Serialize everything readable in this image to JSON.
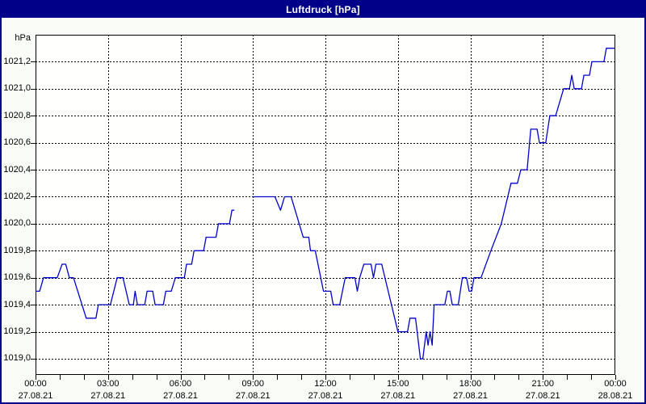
{
  "window": {
    "title": "Luftdruck [hPa]"
  },
  "colors": {
    "titlebar_bg": "#000088",
    "window_border": "#000088",
    "page_bg": "#fafcf8",
    "plot_bg": "#fffffe",
    "grid": "#000000",
    "text": "#000000",
    "line": "#0000cc"
  },
  "chart_data": {
    "type": "line",
    "title": "Luftdruck [hPa]",
    "ylabel": "hPa",
    "xlabel": "",
    "grid": "dashed",
    "legend": "none",
    "ylim": [
      1018.88,
      1021.4
    ],
    "xlim_hours": [
      0,
      24
    ],
    "minor_x_tick_hours": 1,
    "y_ticks": [
      {
        "value": 1021.2,
        "label": "1021,2"
      },
      {
        "value": 1021.0,
        "label": "1021,0"
      },
      {
        "value": 1020.8,
        "label": "1020,8"
      },
      {
        "value": 1020.6,
        "label": "1020,6"
      },
      {
        "value": 1020.4,
        "label": "1020,4"
      },
      {
        "value": 1020.2,
        "label": "1020,2"
      },
      {
        "value": 1020.0,
        "label": "1020,0"
      },
      {
        "value": 1019.8,
        "label": "1019,8"
      },
      {
        "value": 1019.6,
        "label": "1019,6"
      },
      {
        "value": 1019.4,
        "label": "1019,4"
      },
      {
        "value": 1019.2,
        "label": "1019,2"
      },
      {
        "value": 1019.0,
        "label": "1019,0"
      }
    ],
    "x_ticks": [
      {
        "hour": 0,
        "time": "00:00",
        "date": "27.08.21"
      },
      {
        "hour": 3,
        "time": "03:00",
        "date": "27.08.21"
      },
      {
        "hour": 6,
        "time": "06:00",
        "date": "27.08.21"
      },
      {
        "hour": 9,
        "time": "09:00",
        "date": "27.08.21"
      },
      {
        "hour": 12,
        "time": "12:00",
        "date": "27.08.21"
      },
      {
        "hour": 15,
        "time": "15:00",
        "date": "27.08.21"
      },
      {
        "hour": 18,
        "time": "18:00",
        "date": "27.08.21"
      },
      {
        "hour": 21,
        "time": "21:00",
        "date": "27.08.21"
      },
      {
        "hour": 24,
        "time": "00:00",
        "date": "28.08.21"
      }
    ],
    "series": [
      {
        "name": "Luftdruck",
        "color": "#0000cc",
        "segments": [
          [
            [
              0,
              1019.5
            ],
            [
              0.17,
              1019.5
            ],
            [
              0.33,
              1019.6
            ],
            [
              0.9,
              1019.6
            ],
            [
              1.1,
              1019.7
            ],
            [
              1.25,
              1019.7
            ],
            [
              1.4,
              1019.6
            ],
            [
              1.57,
              1019.6
            ],
            [
              2.1,
              1019.3
            ],
            [
              2.5,
              1019.3
            ],
            [
              2.6,
              1019.4
            ],
            [
              3.1,
              1019.4
            ],
            [
              3.38,
              1019.6
            ],
            [
              3.62,
              1019.6
            ],
            [
              3.88,
              1019.4
            ],
            [
              4.05,
              1019.4
            ],
            [
              4.12,
              1019.5
            ],
            [
              4.22,
              1019.4
            ],
            [
              4.52,
              1019.4
            ],
            [
              4.62,
              1019.5
            ],
            [
              4.85,
              1019.5
            ],
            [
              4.95,
              1019.4
            ],
            [
              5.29,
              1019.4
            ],
            [
              5.39,
              1019.5
            ],
            [
              5.62,
              1019.5
            ],
            [
              5.79,
              1019.6
            ],
            [
              6.16,
              1019.6
            ],
            [
              6.25,
              1019.7
            ],
            [
              6.46,
              1019.7
            ],
            [
              6.56,
              1019.8
            ],
            [
              6.96,
              1019.8
            ],
            [
              7.06,
              1019.9
            ],
            [
              7.47,
              1019.9
            ],
            [
              7.57,
              1020.0
            ],
            [
              8.03,
              1020.0
            ],
            [
              8.13,
              1020.1
            ],
            [
              8.23,
              1020.1
            ]
          ],
          [
            [
              9,
              1020.2
            ],
            [
              9.91,
              1020.2
            ],
            [
              10.14,
              1020.1
            ],
            [
              10.31,
              1020.2
            ],
            [
              10.58,
              1020.2
            ],
            [
              11.08,
              1019.9
            ],
            [
              11.31,
              1019.9
            ],
            [
              11.38,
              1019.8
            ],
            [
              11.58,
              1019.8
            ],
            [
              11.92,
              1019.5
            ],
            [
              12.22,
              1019.5
            ],
            [
              12.32,
              1019.4
            ],
            [
              12.59,
              1019.4
            ],
            [
              12.82,
              1019.6
            ],
            [
              13.22,
              1019.6
            ],
            [
              13.32,
              1019.5
            ],
            [
              13.42,
              1019.6
            ],
            [
              13.59,
              1019.7
            ],
            [
              13.89,
              1019.7
            ],
            [
              13.99,
              1019.6
            ],
            [
              14.09,
              1019.7
            ],
            [
              14.33,
              1019.7
            ],
            [
              15,
              1019.2
            ],
            [
              15.4,
              1019.2
            ],
            [
              15.5,
              1019.3
            ],
            [
              15.73,
              1019.3
            ],
            [
              15.93,
              1019.0
            ],
            [
              16.03,
              1019.0
            ],
            [
              16.17,
              1019.2
            ],
            [
              16.25,
              1019.1
            ],
            [
              16.33,
              1019.2
            ],
            [
              16.42,
              1019.1
            ],
            [
              16.5,
              1019.4
            ],
            [
              16.94,
              1019.4
            ],
            [
              17.05,
              1019.5
            ],
            [
              17.15,
              1019.5
            ],
            [
              17.25,
              1019.4
            ],
            [
              17.5,
              1019.4
            ],
            [
              17.67,
              1019.6
            ],
            [
              17.84,
              1019.6
            ],
            [
              17.95,
              1019.5
            ],
            [
              18.05,
              1019.5
            ],
            [
              18.15,
              1019.6
            ],
            [
              18.44,
              1019.6
            ],
            [
              18.85,
              1019.8
            ],
            [
              19.28,
              1020.0
            ],
            [
              19.68,
              1020.3
            ],
            [
              19.95,
              1020.3
            ],
            [
              20.09,
              1020.4
            ],
            [
              20.35,
              1020.4
            ],
            [
              20.5,
              1020.7
            ],
            [
              20.76,
              1020.7
            ],
            [
              20.86,
              1020.6
            ],
            [
              21.12,
              1020.6
            ],
            [
              21.29,
              1020.8
            ],
            [
              21.53,
              1020.8
            ],
            [
              21.86,
              1021.0
            ],
            [
              22.1,
              1021.0
            ],
            [
              22.2,
              1021.1
            ],
            [
              22.3,
              1021.0
            ],
            [
              22.6,
              1021.0
            ],
            [
              22.7,
              1021.1
            ],
            [
              22.93,
              1021.1
            ],
            [
              23.03,
              1021.2
            ],
            [
              23.53,
              1021.2
            ],
            [
              23.63,
              1021.3
            ],
            [
              23.97,
              1021.3
            ]
          ]
        ]
      }
    ]
  }
}
